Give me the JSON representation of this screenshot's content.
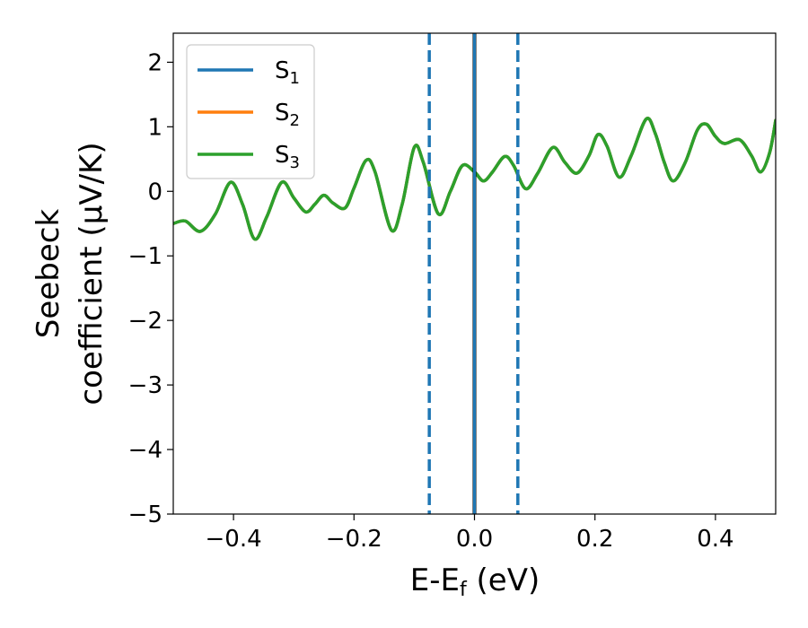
{
  "chart_data": {
    "type": "line",
    "xlabel": "E-E",
    "xlabel_sub": "f",
    "xlabel_unit": " (eV)",
    "ylabel_line1": "Seebeck",
    "ylabel_line2": "coefficient  (μV/K)",
    "xlim": [
      -0.5,
      0.5
    ],
    "ylim": [
      -5,
      2.45
    ],
    "xticks": [
      -0.4,
      -0.2,
      0.0,
      0.2,
      0.4
    ],
    "xtick_labels": [
      "−0.4",
      "−0.2",
      "0.0",
      "0.2",
      "0.4"
    ],
    "yticks": [
      -5,
      -4,
      -3,
      -2,
      -1,
      0,
      1,
      2
    ],
    "ytick_labels": [
      "−5",
      "−4",
      "−3",
      "−2",
      "−1",
      "0",
      "1",
      "2"
    ],
    "grid": false,
    "legend_position": "top-left",
    "vlines": [
      {
        "x": -0.075,
        "style": "dashed",
        "color": "#1f77b4"
      },
      {
        "x": 0.0,
        "style": "solid",
        "color": "#000000"
      },
      {
        "x": 0.0,
        "style": "solid",
        "color": "#1f77b4"
      },
      {
        "x": 0.072,
        "style": "dashed",
        "color": "#1f77b4"
      }
    ],
    "curve_points": [
      [
        -0.5,
        -0.5
      ],
      [
        -0.48,
        -0.46
      ],
      [
        -0.455,
        -0.62
      ],
      [
        -0.43,
        -0.35
      ],
      [
        -0.405,
        0.14
      ],
      [
        -0.385,
        -0.2
      ],
      [
        -0.365,
        -0.74
      ],
      [
        -0.345,
        -0.4
      ],
      [
        -0.32,
        0.14
      ],
      [
        -0.3,
        -0.1
      ],
      [
        -0.28,
        -0.32
      ],
      [
        -0.265,
        -0.2
      ],
      [
        -0.25,
        -0.06
      ],
      [
        -0.235,
        -0.18
      ],
      [
        -0.215,
        -0.26
      ],
      [
        -0.2,
        0.05
      ],
      [
        -0.18,
        0.48
      ],
      [
        -0.165,
        0.3
      ],
      [
        -0.138,
        -0.6
      ],
      [
        -0.12,
        -0.2
      ],
      [
        -0.1,
        0.68
      ],
      [
        -0.085,
        0.45
      ],
      [
        -0.06,
        -0.35
      ],
      [
        -0.04,
        0.0
      ],
      [
        -0.02,
        0.4
      ],
      [
        0.0,
        0.3
      ],
      [
        0.015,
        0.16
      ],
      [
        0.03,
        0.3
      ],
      [
        0.05,
        0.54
      ],
      [
        0.065,
        0.4
      ],
      [
        0.085,
        0.04
      ],
      [
        0.105,
        0.28
      ],
      [
        0.13,
        0.68
      ],
      [
        0.15,
        0.45
      ],
      [
        0.17,
        0.28
      ],
      [
        0.19,
        0.55
      ],
      [
        0.205,
        0.88
      ],
      [
        0.22,
        0.7
      ],
      [
        0.24,
        0.22
      ],
      [
        0.26,
        0.55
      ],
      [
        0.285,
        1.12
      ],
      [
        0.3,
        0.9
      ],
      [
        0.315,
        0.45
      ],
      [
        0.33,
        0.16
      ],
      [
        0.35,
        0.45
      ],
      [
        0.37,
        0.95
      ],
      [
        0.385,
        1.04
      ],
      [
        0.4,
        0.85
      ],
      [
        0.415,
        0.74
      ],
      [
        0.44,
        0.8
      ],
      [
        0.46,
        0.55
      ],
      [
        0.475,
        0.3
      ],
      [
        0.49,
        0.6
      ],
      [
        0.5,
        1.1
      ]
    ],
    "series": [
      {
        "name": "S",
        "sub": "1",
        "color": "#1f77b4"
      },
      {
        "name": "S",
        "sub": "2",
        "color": "#ff7f0e"
      },
      {
        "name": "S",
        "sub": "3",
        "color": "#2ca02c"
      }
    ]
  }
}
